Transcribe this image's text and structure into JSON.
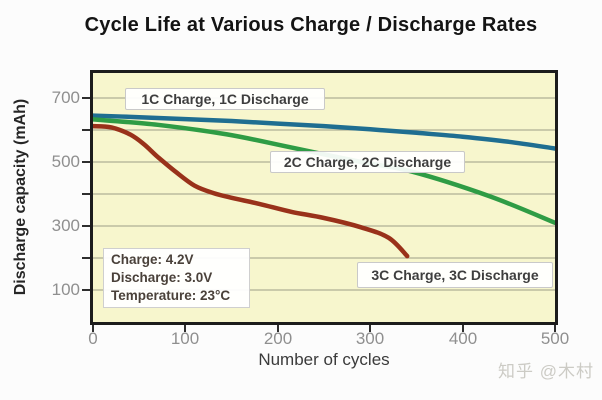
{
  "title": "Cycle Life at Various Charge / Discharge Rates",
  "watermark": "知乎 @木村",
  "chart_data": {
    "type": "line",
    "title": "Cycle Life at Various Charge / Discharge Rates",
    "xlabel": "Number of cycles",
    "ylabel": "Discharge capacity (mAh)",
    "xlim": [
      0,
      500
    ],
    "ylim": [
      0,
      778
    ],
    "x_ticks": [
      0,
      100,
      200,
      300,
      400,
      500
    ],
    "y_tick_marks": [
      100,
      200,
      300,
      400,
      500,
      600,
      700
    ],
    "y_tick_labels": [
      100,
      300,
      500,
      700
    ],
    "grid": "horizontal-only",
    "plot_bg_color": "#f7f6cd",
    "grid_color": "#b0b096",
    "legend_position": "labels-on-chart",
    "series": [
      {
        "name": "1C Charge, 1C Discharge",
        "color": "#1f6e91",
        "points": [
          [
            0,
            645
          ],
          [
            50,
            640
          ],
          [
            100,
            634
          ],
          [
            150,
            628
          ],
          [
            200,
            620
          ],
          [
            250,
            612
          ],
          [
            300,
            602
          ],
          [
            350,
            591
          ],
          [
            400,
            579
          ],
          [
            450,
            563
          ],
          [
            500,
            542
          ]
        ]
      },
      {
        "name": "2C Charge, 2C Discharge",
        "color": "#2f9c45",
        "points": [
          [
            0,
            633
          ],
          [
            70,
            616
          ],
          [
            145,
            586
          ],
          [
            215,
            545
          ],
          [
            290,
            500
          ],
          [
            345,
            470
          ],
          [
            430,
            392
          ],
          [
            500,
            310
          ]
        ]
      },
      {
        "name": "3C Charge, 3C Discharge",
        "color": "#99311a",
        "points": [
          [
            0,
            612
          ],
          [
            20,
            608
          ],
          [
            40,
            586
          ],
          [
            55,
            556
          ],
          [
            70,
            516
          ],
          [
            90,
            468
          ],
          [
            110,
            426
          ],
          [
            130,
            403
          ],
          [
            150,
            388
          ],
          [
            180,
            369
          ],
          [
            215,
            344
          ],
          [
            250,
            325
          ],
          [
            290,
            296
          ],
          [
            320,
            263
          ],
          [
            340,
            206
          ]
        ]
      }
    ],
    "annotation": {
      "lines": [
        "Charge: 4.2V",
        "Discharge: 3.0V",
        "Temperature: 23°C"
      ]
    }
  }
}
